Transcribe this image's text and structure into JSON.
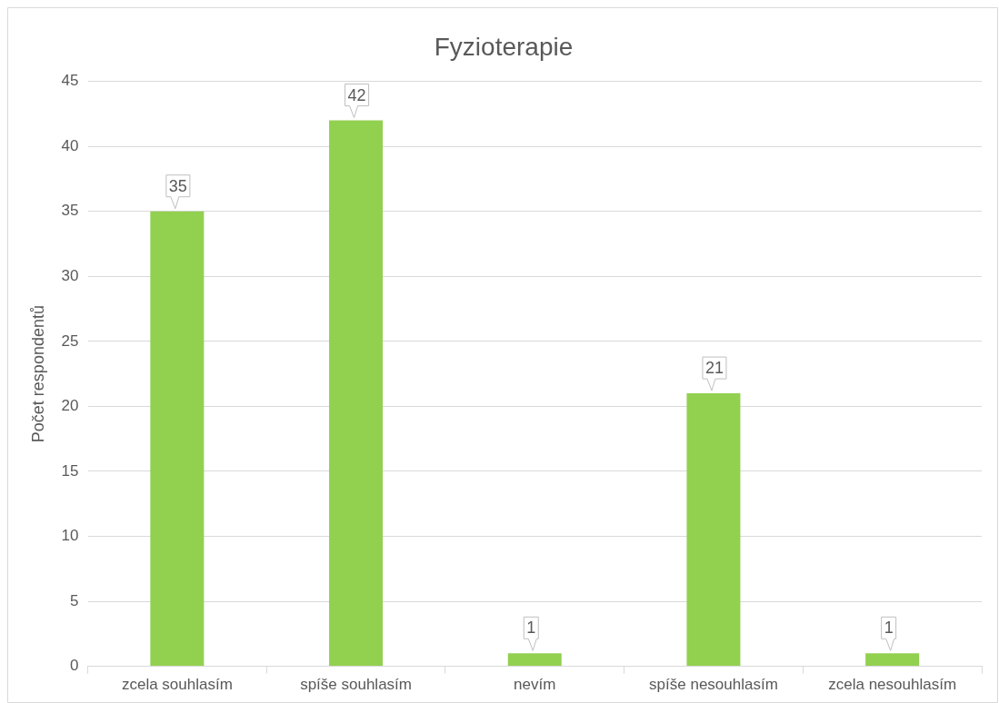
{
  "chart_data": {
    "type": "bar",
    "title": "Fyzioterapie",
    "ylabel": "Počet respondentů",
    "categories": [
      "zcela souhlasím",
      "spíše souhlasím",
      "nevím",
      "spíše nesouhlasím",
      "zcela nesouhlasím"
    ],
    "values": [
      35,
      42,
      1,
      21,
      1
    ],
    "color": "#92d050",
    "ylim": [
      0,
      45
    ],
    "yticks": [
      0,
      5,
      10,
      15,
      20,
      25,
      30,
      35,
      40,
      45
    ],
    "grid": "y",
    "legend": false,
    "data_labels": true
  }
}
